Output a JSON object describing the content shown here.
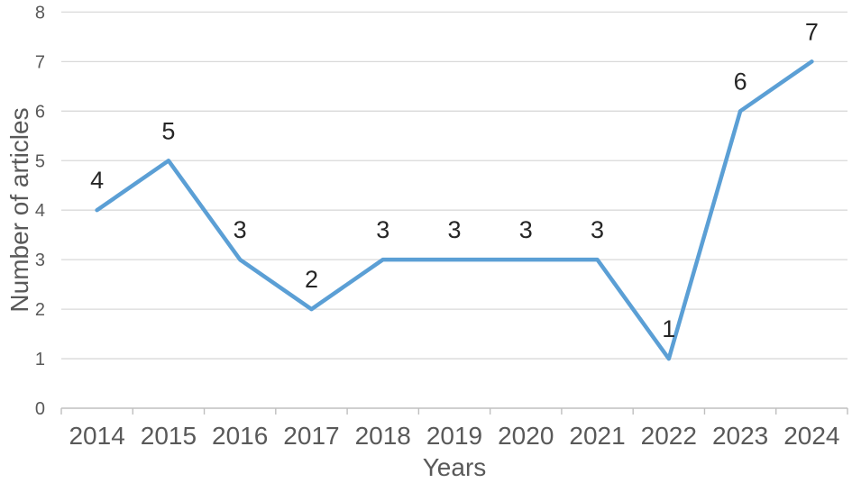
{
  "chart_data": {
    "type": "line",
    "title": "",
    "categories": [
      "2014",
      "2015",
      "2016",
      "2017",
      "2018",
      "2019",
      "2020",
      "2021",
      "2022",
      "2023",
      "2024"
    ],
    "values": [
      4,
      5,
      3,
      2,
      3,
      3,
      3,
      3,
      1,
      6,
      7
    ],
    "xlabel": "Years",
    "ylabel": "Number of articles",
    "ylim": [
      0,
      8
    ],
    "yticks": [
      0,
      1,
      2,
      3,
      4,
      5,
      6,
      7,
      8
    ],
    "grid": "horizontal",
    "legend_position": "none",
    "data_labels": "above",
    "colors": {
      "line": "#5B9FD5",
      "gridline": "#D9D9D9",
      "axis": "#BFBFBF",
      "tick_label": "#595959",
      "axis_title": "#595959",
      "data_label": "#262626",
      "background": "#FFFFFF"
    }
  }
}
